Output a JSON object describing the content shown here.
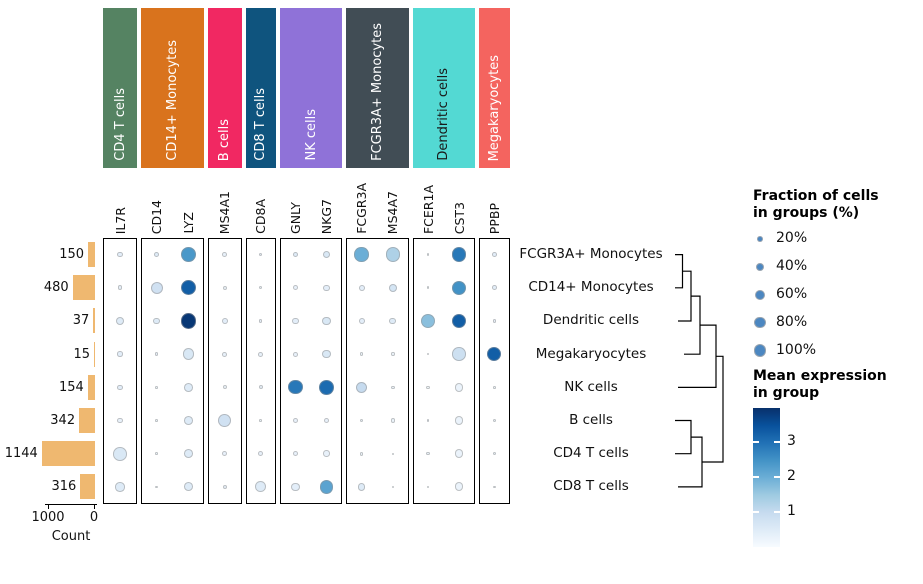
{
  "genes": [
    "IL7R",
    "CD14",
    "LYZ",
    "MS4A1",
    "CD8A",
    "GNLY",
    "NKG7",
    "FCGR3A",
    "MS4A7",
    "FCER1A",
    "CST3",
    "PPBP"
  ],
  "groups": [
    {
      "label": "CD4 T cells",
      "color": "#558362",
      "text_color": "#ffffff",
      "genes": 1
    },
    {
      "label": "CD14+ Monocytes",
      "color": "#d9731d",
      "text_color": "#ffffff",
      "genes": 2
    },
    {
      "label": "B cells",
      "color": "#f12862",
      "text_color": "#ffffff",
      "genes": 1
    },
    {
      "label": "CD8 T cells",
      "color": "#0f547e",
      "text_color": "#ffffff",
      "genes": 1
    },
    {
      "label": "NK cells",
      "color": "#8f72d8",
      "text_color": "#ffffff",
      "genes": 2
    },
    {
      "label": "FCGR3A+ Monocytes",
      "color": "#414d55",
      "text_color": "#ffffff",
      "genes": 2
    },
    {
      "label": "Dendritic cells",
      "color": "#53d9d3",
      "text_color": "#1a1a1a",
      "genes": 2
    },
    {
      "label": "Megakaryocytes",
      "color": "#f4645f",
      "text_color": "#ffffff",
      "genes": 1
    }
  ],
  "rows": [
    "FCGR3A+ Monocytes",
    "CD14+ Monocytes",
    "Dendritic cells",
    "Megakaryocytes",
    "NK cells",
    "B cells",
    "CD4 T cells",
    "CD8 T cells"
  ],
  "bar_chart": {
    "counts": [
      150,
      480,
      37,
      15,
      154,
      342,
      1144,
      316
    ],
    "axis_ticks": [
      "1000",
      "0"
    ],
    "xlabel": "Count",
    "bar_color": "#efb870"
  },
  "chart_data": {
    "type": "dotplot",
    "title": "",
    "genes": [
      "IL7R",
      "CD14",
      "LYZ",
      "MS4A1",
      "CD8A",
      "GNLY",
      "NKG7",
      "FCGR3A",
      "MS4A7",
      "FCER1A",
      "CST3",
      "PPBP"
    ],
    "cell_types": [
      "FCGR3A+ Monocytes",
      "CD14+ Monocytes",
      "Dendritic cells",
      "Megakaryocytes",
      "NK cells",
      "B cells",
      "CD4 T cells",
      "CD8 T cells"
    ],
    "cell_counts": [
      150,
      480,
      37,
      15,
      154,
      342,
      1144,
      316
    ],
    "colormap": "Blues",
    "expression_range": [
      0,
      4
    ],
    "series": [
      {
        "name": "FCGR3A+ Monocytes",
        "fraction_pct": [
          13,
          13,
          96,
          10,
          5,
          13,
          24,
          88,
          88,
          3,
          96,
          10
        ],
        "mean_expression": [
          0.4,
          0.5,
          2.4,
          0.3,
          0.3,
          0.5,
          0.6,
          2.0,
          1.3,
          0.2,
          2.9,
          0.4
        ]
      },
      {
        "name": "CD14+ Monocytes",
        "fraction_pct": [
          10,
          64,
          100,
          7,
          4,
          12,
          16,
          16,
          28,
          3,
          90,
          10
        ],
        "mean_expression": [
          0.3,
          0.8,
          3.3,
          0.2,
          0.2,
          0.3,
          0.4,
          0.4,
          0.7,
          0.2,
          2.5,
          0.4
        ]
      },
      {
        "name": "Dendritic cells",
        "fraction_pct": [
          34,
          20,
          100,
          16,
          5,
          20,
          34,
          16,
          20,
          90,
          96,
          5
        ],
        "mean_expression": [
          0.5,
          0.5,
          3.9,
          0.4,
          0.3,
          0.4,
          0.6,
          0.4,
          0.5,
          1.7,
          3.3,
          0.3
        ]
      },
      {
        "name": "Megakaryocytes",
        "fraction_pct": [
          13,
          5,
          57,
          10,
          10,
          10,
          28,
          5,
          5,
          2,
          80,
          88
        ],
        "mean_expression": [
          0.4,
          0.3,
          0.6,
          0.3,
          0.3,
          0.3,
          0.6,
          0.2,
          0.2,
          0.1,
          0.85,
          3.3
        ]
      },
      {
        "name": "NK cells",
        "fraction_pct": [
          13,
          3,
          34,
          7,
          7,
          88,
          96,
          57,
          5,
          4,
          35,
          3
        ],
        "mean_expression": [
          0.4,
          0.2,
          0.5,
          0.2,
          0.3,
          2.9,
          3.1,
          1.0,
          0.2,
          0.1,
          0.25,
          0.2
        ]
      },
      {
        "name": "B cells",
        "fraction_pct": [
          13,
          3,
          34,
          72,
          3,
          14,
          14,
          4,
          8,
          3,
          35,
          4
        ],
        "mean_expression": [
          0.3,
          0.2,
          0.5,
          0.8,
          0.2,
          0.3,
          0.3,
          0.2,
          0.2,
          0.3,
          0.25,
          0.2
        ]
      },
      {
        "name": "CD4 T cells",
        "fraction_pct": [
          80,
          3,
          34,
          13,
          11,
          11,
          18,
          6,
          2,
          4,
          35,
          4
        ],
        "mean_expression": [
          0.6,
          0.2,
          0.5,
          0.3,
          0.3,
          0.3,
          0.3,
          0.2,
          0.2,
          0.2,
          0.25,
          0.2
        ]
      },
      {
        "name": "CD8 T cells",
        "fraction_pct": [
          38,
          3,
          34,
          8,
          51,
          28,
          80,
          24,
          3,
          3,
          35,
          3
        ],
        "mean_expression": [
          0.5,
          0.2,
          0.5,
          0.3,
          0.5,
          0.4,
          2.2,
          0.5,
          0.2,
          0.2,
          0.25,
          0.2
        ]
      }
    ]
  },
  "legend_fraction": {
    "title_line1": "Fraction of cells",
    "title_line2": "in groups (%)",
    "dot_color": "#4c87c1",
    "entries": [
      {
        "label": "20%",
        "pct": 20
      },
      {
        "label": "40%",
        "pct": 40
      },
      {
        "label": "60%",
        "pct": 60
      },
      {
        "label": "80%",
        "pct": 80
      },
      {
        "label": "100%",
        "pct": 100
      }
    ]
  },
  "legend_expression": {
    "title_line1": "Mean expression",
    "title_line2": "in group",
    "ticks": [
      "3",
      "2",
      "1"
    ],
    "gradient_low": "#f7fbff",
    "gradient_high": "#08306b"
  }
}
